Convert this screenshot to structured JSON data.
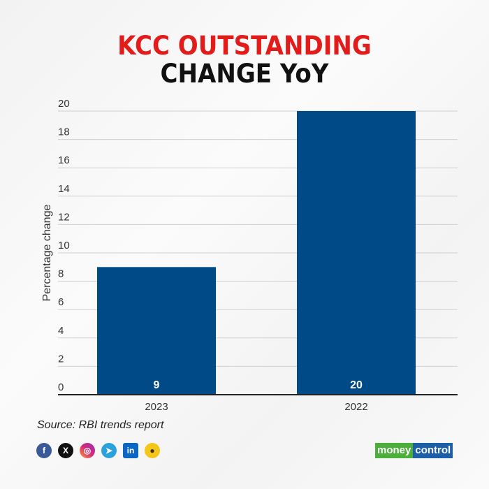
{
  "chart_data": {
    "type": "bar",
    "title": "KCC OUTSTANDING",
    "subtitle": "CHANGE YoY",
    "categories": [
      "2023",
      "2022"
    ],
    "values": [
      9,
      20
    ],
    "data_labels": [
      "9",
      "20"
    ],
    "xlabel": "",
    "ylabel": "Percentage change",
    "ylim": [
      0,
      20
    ],
    "yticks": [
      0,
      2,
      4,
      6,
      8,
      10,
      12,
      14,
      16,
      18,
      20
    ],
    "grid": true,
    "bar_color": "#004a87",
    "title_color": "#e21b1b"
  },
  "footer": {
    "source": "Source: RBI trends report",
    "social_icons": [
      "facebook-icon",
      "x-icon",
      "instagram-icon",
      "telegram-icon",
      "linkedin-icon",
      "koo-icon"
    ],
    "brand": {
      "part1": "money",
      "part2": "control"
    }
  }
}
